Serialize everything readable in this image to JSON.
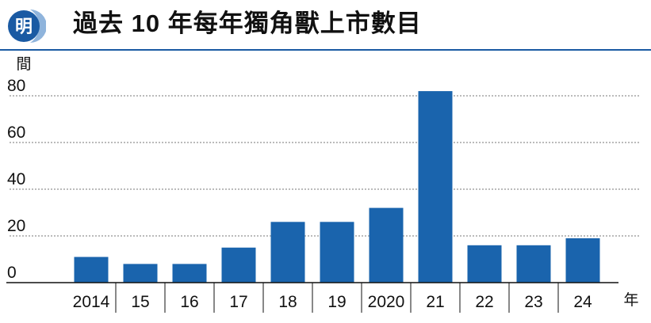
{
  "brand": {
    "logo_char": "明",
    "accent": "#1a5aa3"
  },
  "header": {
    "title": "過去 10 年每年獨角獸上市數目"
  },
  "chart_data": {
    "type": "bar",
    "title": "過去 10 年每年獨角獸上市數目",
    "ylabel": "間",
    "xlabel": "年",
    "categories": [
      "2014",
      "15",
      "16",
      "17",
      "18",
      "19",
      "2020",
      "21",
      "22",
      "23",
      "24"
    ],
    "values": [
      11,
      8,
      8,
      15,
      26,
      26,
      32,
      82,
      16,
      16,
      19
    ],
    "ylim": [
      0,
      80
    ],
    "yticks": [
      0,
      20,
      40,
      60,
      80
    ],
    "grid": true,
    "bar_color": "#1a64ad"
  }
}
